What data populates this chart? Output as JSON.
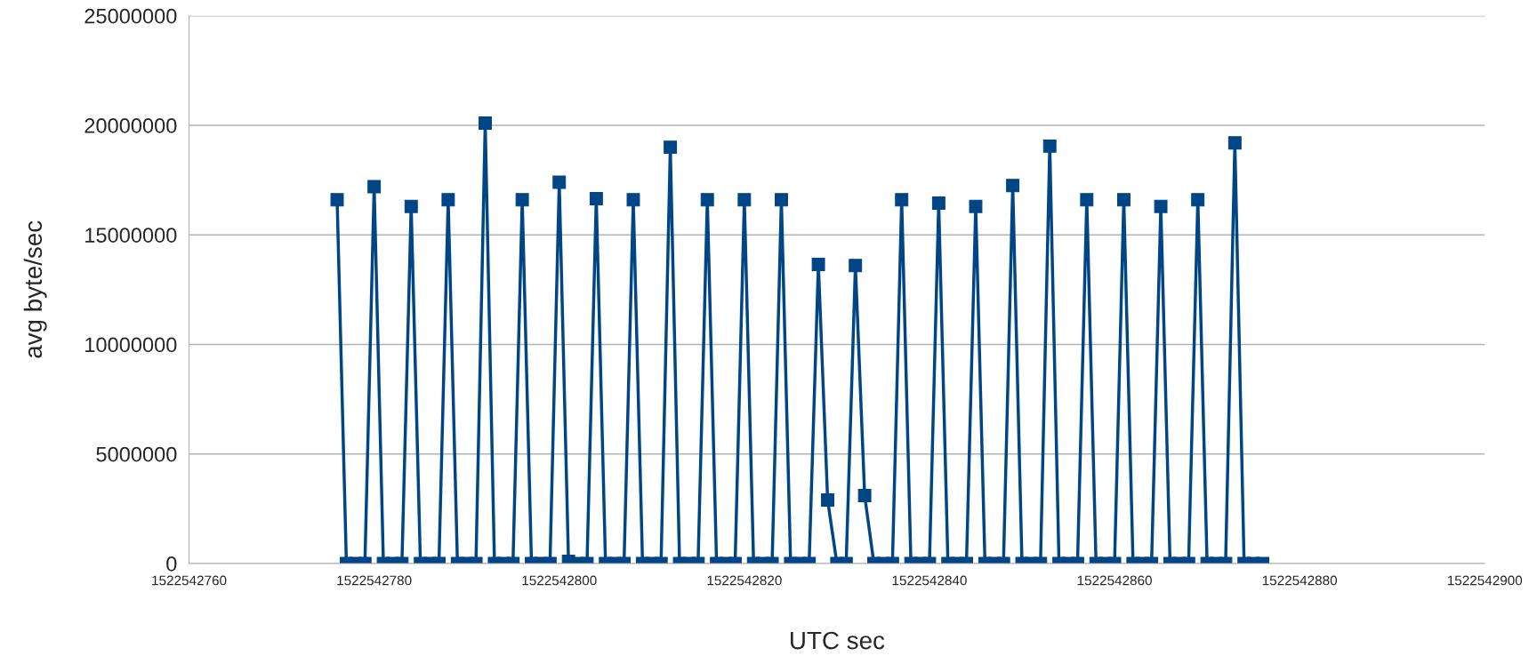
{
  "chart_data": {
    "type": "line",
    "xlabel": "UTC sec",
    "ylabel": "avg byte/sec",
    "x": [
      1522542776,
      1522542777,
      1522542778,
      1522542779,
      1522542780,
      1522542781,
      1522542782,
      1522542783,
      1522542784,
      1522542785,
      1522542786,
      1522542787,
      1522542788,
      1522542789,
      1522542790,
      1522542791,
      1522542792,
      1522542793,
      1522542794,
      1522542795,
      1522542796,
      1522542797,
      1522542798,
      1522542799,
      1522542800,
      1522542801,
      1522542802,
      1522542803,
      1522542804,
      1522542805,
      1522542806,
      1522542807,
      1522542808,
      1522542809,
      1522542810,
      1522542811,
      1522542812,
      1522542813,
      1522542814,
      1522542815,
      1522542816,
      1522542817,
      1522542818,
      1522542819,
      1522542820,
      1522542821,
      1522542822,
      1522542823,
      1522542824,
      1522542825,
      1522542826,
      1522542827,
      1522542828,
      1522542829,
      1522542830,
      1522542831,
      1522542832,
      1522542833,
      1522542834,
      1522542835,
      1522542836,
      1522542837,
      1522542838,
      1522542839,
      1522542840,
      1522542841,
      1522542842,
      1522542843,
      1522542844,
      1522542845,
      1522542846,
      1522542847,
      1522542848,
      1522542849,
      1522542850,
      1522542851,
      1522542852,
      1522542853,
      1522542854,
      1522542855,
      1522542856,
      1522542857,
      1522542858,
      1522542859,
      1522542860,
      1522542861,
      1522542862,
      1522542863,
      1522542864,
      1522542865,
      1522542866,
      1522542867,
      1522542868,
      1522542869,
      1522542870,
      1522542871,
      1522542872,
      1522542873,
      1522542874,
      1522542875,
      1522542876
    ],
    "series": [
      {
        "color": "#004586",
        "values": [
          16600000,
          0,
          0,
          0,
          17200000,
          0,
          0,
          0,
          16300000,
          0,
          0,
          0,
          16600000,
          0,
          0,
          0,
          20100000,
          0,
          0,
          0,
          16600000,
          0,
          0,
          0,
          17400000,
          100000,
          0,
          0,
          16650000,
          0,
          0,
          0,
          16600000,
          0,
          0,
          0,
          19000000,
          0,
          0,
          0,
          16600000,
          0,
          0,
          0,
          16600000,
          0,
          0,
          0,
          16600000,
          0,
          0,
          0,
          13650000,
          2900000,
          0,
          0,
          13600000,
          3100000,
          0,
          0,
          0,
          16600000,
          0,
          0,
          0,
          16450000,
          0,
          0,
          0,
          16300000,
          0,
          0,
          0,
          17250000,
          0,
          0,
          0,
          19050000,
          0,
          0,
          0,
          16600000,
          0,
          0,
          0,
          16600000,
          0,
          0,
          0,
          16300000,
          0,
          0,
          0,
          16600000,
          0,
          0,
          0,
          19200000,
          0,
          0,
          0
        ]
      }
    ],
    "xlim": [
      1522542760,
      1522542900
    ],
    "xticks": [
      1522542760,
      1522542780,
      1522542800,
      1522542820,
      1522542840,
      1522542860,
      1522542880,
      1522542900
    ],
    "ylim": [
      0,
      25000000
    ],
    "yticks": [
      0,
      5000000,
      10000000,
      15000000,
      20000000,
      25000000
    ],
    "grid": "y",
    "marker": "square",
    "line_style": "solid"
  }
}
